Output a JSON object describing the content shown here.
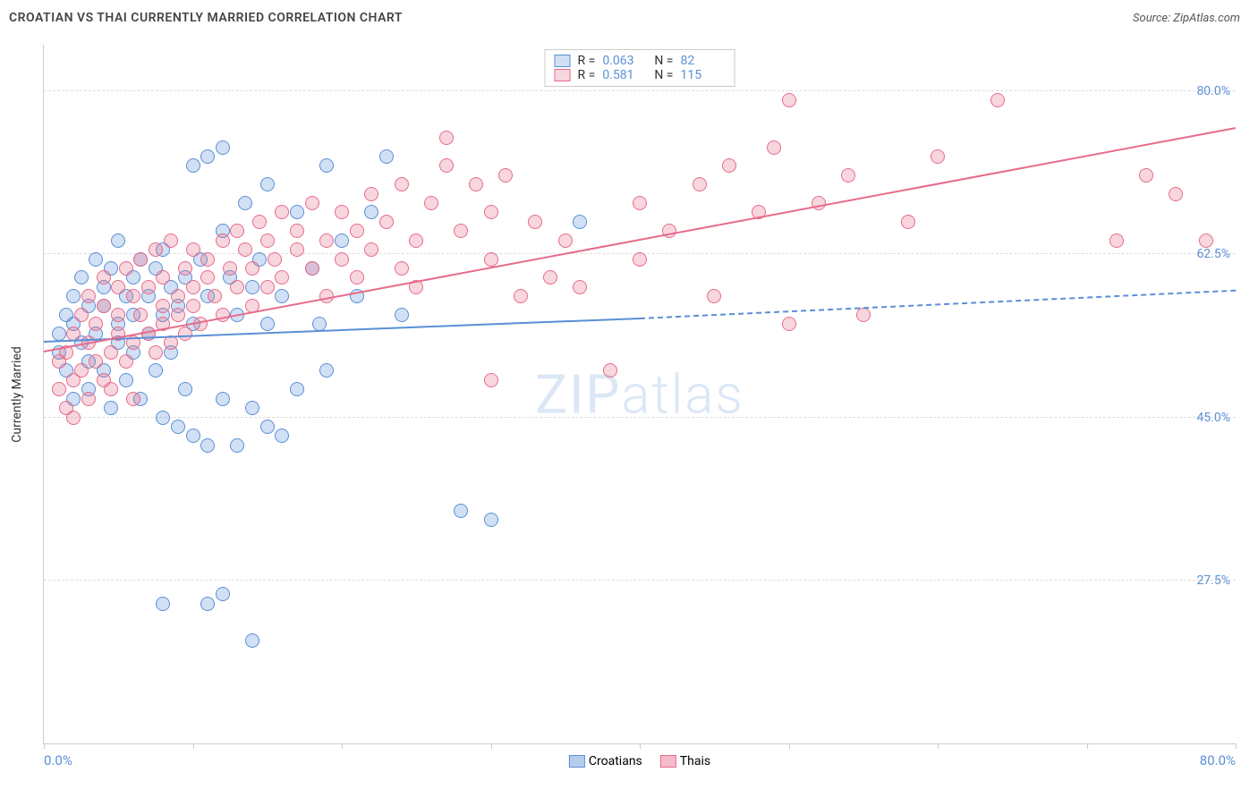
{
  "title": "CROATIAN VS THAI CURRENTLY MARRIED CORRELATION CHART",
  "source": "Source: ZipAtlas.com",
  "watermark": "ZIPatlas",
  "chart": {
    "type": "scatter",
    "background_color": "#ffffff",
    "grid_color": "#dddddd",
    "axis_color": "#cccccc",
    "title_color": "#444444",
    "title_fontsize": 14,
    "tick_label_color": "#5b8fd6",
    "tick_fontsize": 14,
    "ylabel": "Currently Married",
    "ylabel_color": "#333333",
    "ylabel_fontsize": 14,
    "xlim": [
      0,
      80
    ],
    "ylim": [
      10,
      85
    ],
    "ytick_values": [
      27.5,
      45.0,
      62.5,
      80.0
    ],
    "ytick_labels": [
      "27.5%",
      "45.0%",
      "62.5%",
      "80.0%"
    ],
    "xtick_values": [
      0,
      10,
      20,
      30,
      40,
      50,
      60,
      70,
      80
    ],
    "xlabel_min": "0.0%",
    "xlabel_max": "80.0%",
    "watermark_color": "#dbe7f5",
    "marker_radius": 8,
    "marker_stroke_width": 1.2,
    "marker_fill_opacity": 0.25,
    "line_width": 2,
    "series": [
      {
        "name": "Croatians",
        "color": "#5b8fd6",
        "fill": "rgba(91,143,214,0.28)",
        "stroke": "#5b8fd6",
        "R": "0.063",
        "N": "82",
        "trend": {
          "x1": 0,
          "y1": 53.0,
          "x2": 40,
          "y2": 55.5,
          "solid": true
        },
        "trend_ext": {
          "x1": 40,
          "y1": 55.5,
          "x2": 80,
          "y2": 58.5,
          "solid": false
        },
        "points": [
          [
            1,
            52
          ],
          [
            1,
            54
          ],
          [
            1.5,
            50
          ],
          [
            1.5,
            56
          ],
          [
            2,
            58
          ],
          [
            2,
            47
          ],
          [
            2,
            55
          ],
          [
            2.5,
            53
          ],
          [
            2.5,
            60
          ],
          [
            3,
            48
          ],
          [
            3,
            57
          ],
          [
            3,
            51
          ],
          [
            3.5,
            62
          ],
          [
            3.5,
            54
          ],
          [
            4,
            59
          ],
          [
            4,
            50
          ],
          [
            4,
            57
          ],
          [
            4.5,
            61
          ],
          [
            4.5,
            46
          ],
          [
            5,
            55
          ],
          [
            5,
            53
          ],
          [
            5,
            64
          ],
          [
            5.5,
            58
          ],
          [
            5.5,
            49
          ],
          [
            6,
            56
          ],
          [
            6,
            60
          ],
          [
            6,
            52
          ],
          [
            6.5,
            62
          ],
          [
            6.5,
            47
          ],
          [
            7,
            58
          ],
          [
            7,
            54
          ],
          [
            7.5,
            61
          ],
          [
            7.5,
            50
          ],
          [
            8,
            63
          ],
          [
            8,
            56
          ],
          [
            8,
            45
          ],
          [
            8.5,
            59
          ],
          [
            8.5,
            52
          ],
          [
            9,
            57
          ],
          [
            9,
            44
          ],
          [
            9.5,
            60
          ],
          [
            9.5,
            48
          ],
          [
            10,
            72
          ],
          [
            10,
            55
          ],
          [
            10,
            43
          ],
          [
            10.5,
            62
          ],
          [
            11,
            73
          ],
          [
            11,
            58
          ],
          [
            11,
            42
          ],
          [
            12,
            74
          ],
          [
            12,
            65
          ],
          [
            12,
            47
          ],
          [
            12.5,
            60
          ],
          [
            13,
            56
          ],
          [
            13,
            42
          ],
          [
            13.5,
            68
          ],
          [
            14,
            59
          ],
          [
            14,
            46
          ],
          [
            14.5,
            62
          ],
          [
            15,
            70
          ],
          [
            15,
            55
          ],
          [
            15,
            44
          ],
          [
            16,
            58
          ],
          [
            16,
            43
          ],
          [
            17,
            67
          ],
          [
            17,
            48
          ],
          [
            18,
            61
          ],
          [
            18.5,
            55
          ],
          [
            19,
            72
          ],
          [
            19,
            50
          ],
          [
            20,
            64
          ],
          [
            21,
            58
          ],
          [
            22,
            67
          ],
          [
            23,
            73
          ],
          [
            24,
            56
          ],
          [
            28,
            35
          ],
          [
            30,
            34
          ],
          [
            8,
            25
          ],
          [
            11,
            25
          ],
          [
            12,
            26
          ],
          [
            14,
            21
          ],
          [
            36,
            66
          ]
        ]
      },
      {
        "name": "Thais",
        "color": "#e76b8a",
        "fill": "rgba(231,107,138,0.28)",
        "stroke": "#e76b8a",
        "R": "0.581",
        "N": "115",
        "trend": {
          "x1": 0,
          "y1": 52.0,
          "x2": 80,
          "y2": 76.0,
          "solid": true
        },
        "points": [
          [
            1,
            48
          ],
          [
            1,
            51
          ],
          [
            1.5,
            46
          ],
          [
            1.5,
            52
          ],
          [
            2,
            49
          ],
          [
            2,
            54
          ],
          [
            2,
            45
          ],
          [
            2.5,
            50
          ],
          [
            2.5,
            56
          ],
          [
            3,
            47
          ],
          [
            3,
            53
          ],
          [
            3,
            58
          ],
          [
            3.5,
            51
          ],
          [
            3.5,
            55
          ],
          [
            4,
            49
          ],
          [
            4,
            57
          ],
          [
            4,
            60
          ],
          [
            4.5,
            52
          ],
          [
            4.5,
            48
          ],
          [
            5,
            56
          ],
          [
            5,
            54
          ],
          [
            5,
            59
          ],
          [
            5.5,
            51
          ],
          [
            5.5,
            61
          ],
          [
            6,
            53
          ],
          [
            6,
            58
          ],
          [
            6,
            47
          ],
          [
            6.5,
            56
          ],
          [
            6.5,
            62
          ],
          [
            7,
            54
          ],
          [
            7,
            59
          ],
          [
            7.5,
            52
          ],
          [
            7.5,
            63
          ],
          [
            8,
            57
          ],
          [
            8,
            55
          ],
          [
            8,
            60
          ],
          [
            8.5,
            53
          ],
          [
            8.5,
            64
          ],
          [
            9,
            58
          ],
          [
            9,
            56
          ],
          [
            9.5,
            61
          ],
          [
            9.5,
            54
          ],
          [
            10,
            63
          ],
          [
            10,
            59
          ],
          [
            10,
            57
          ],
          [
            10.5,
            55
          ],
          [
            11,
            62
          ],
          [
            11,
            60
          ],
          [
            11.5,
            58
          ],
          [
            12,
            64
          ],
          [
            12,
            56
          ],
          [
            12.5,
            61
          ],
          [
            13,
            59
          ],
          [
            13,
            65
          ],
          [
            13.5,
            63
          ],
          [
            14,
            57
          ],
          [
            14,
            61
          ],
          [
            14.5,
            66
          ],
          [
            15,
            64
          ],
          [
            15,
            59
          ],
          [
            15.5,
            62
          ],
          [
            16,
            67
          ],
          [
            16,
            60
          ],
          [
            17,
            63
          ],
          [
            17,
            65
          ],
          [
            18,
            61
          ],
          [
            18,
            68
          ],
          [
            19,
            64
          ],
          [
            19,
            58
          ],
          [
            20,
            67
          ],
          [
            20,
            62
          ],
          [
            21,
            65
          ],
          [
            21,
            60
          ],
          [
            22,
            69
          ],
          [
            22,
            63
          ],
          [
            23,
            66
          ],
          [
            24,
            61
          ],
          [
            24,
            70
          ],
          [
            25,
            64
          ],
          [
            25,
            59
          ],
          [
            26,
            68
          ],
          [
            27,
            75
          ],
          [
            27,
            72
          ],
          [
            28,
            65
          ],
          [
            29,
            70
          ],
          [
            30,
            62
          ],
          [
            30,
            67
          ],
          [
            30,
            49
          ],
          [
            31,
            71
          ],
          [
            32,
            58
          ],
          [
            33,
            66
          ],
          [
            34,
            60
          ],
          [
            35,
            64
          ],
          [
            36,
            59
          ],
          [
            38,
            50
          ],
          [
            40,
            68
          ],
          [
            40,
            62
          ],
          [
            42,
            65
          ],
          [
            44,
            70
          ],
          [
            45,
            58
          ],
          [
            46,
            72
          ],
          [
            48,
            67
          ],
          [
            49,
            74
          ],
          [
            50,
            55
          ],
          [
            50,
            79
          ],
          [
            52,
            68
          ],
          [
            54,
            71
          ],
          [
            55,
            56
          ],
          [
            58,
            66
          ],
          [
            60,
            73
          ],
          [
            64,
            79
          ],
          [
            72,
            64
          ],
          [
            74,
            71
          ],
          [
            76,
            69
          ],
          [
            78,
            64
          ]
        ]
      }
    ],
    "legend_bottom": [
      {
        "label": "Croatians",
        "fill": "rgba(91,143,214,0.45)",
        "stroke": "#5b8fd6"
      },
      {
        "label": "Thais",
        "fill": "rgba(231,107,138,0.45)",
        "stroke": "#e76b8a"
      }
    ]
  }
}
